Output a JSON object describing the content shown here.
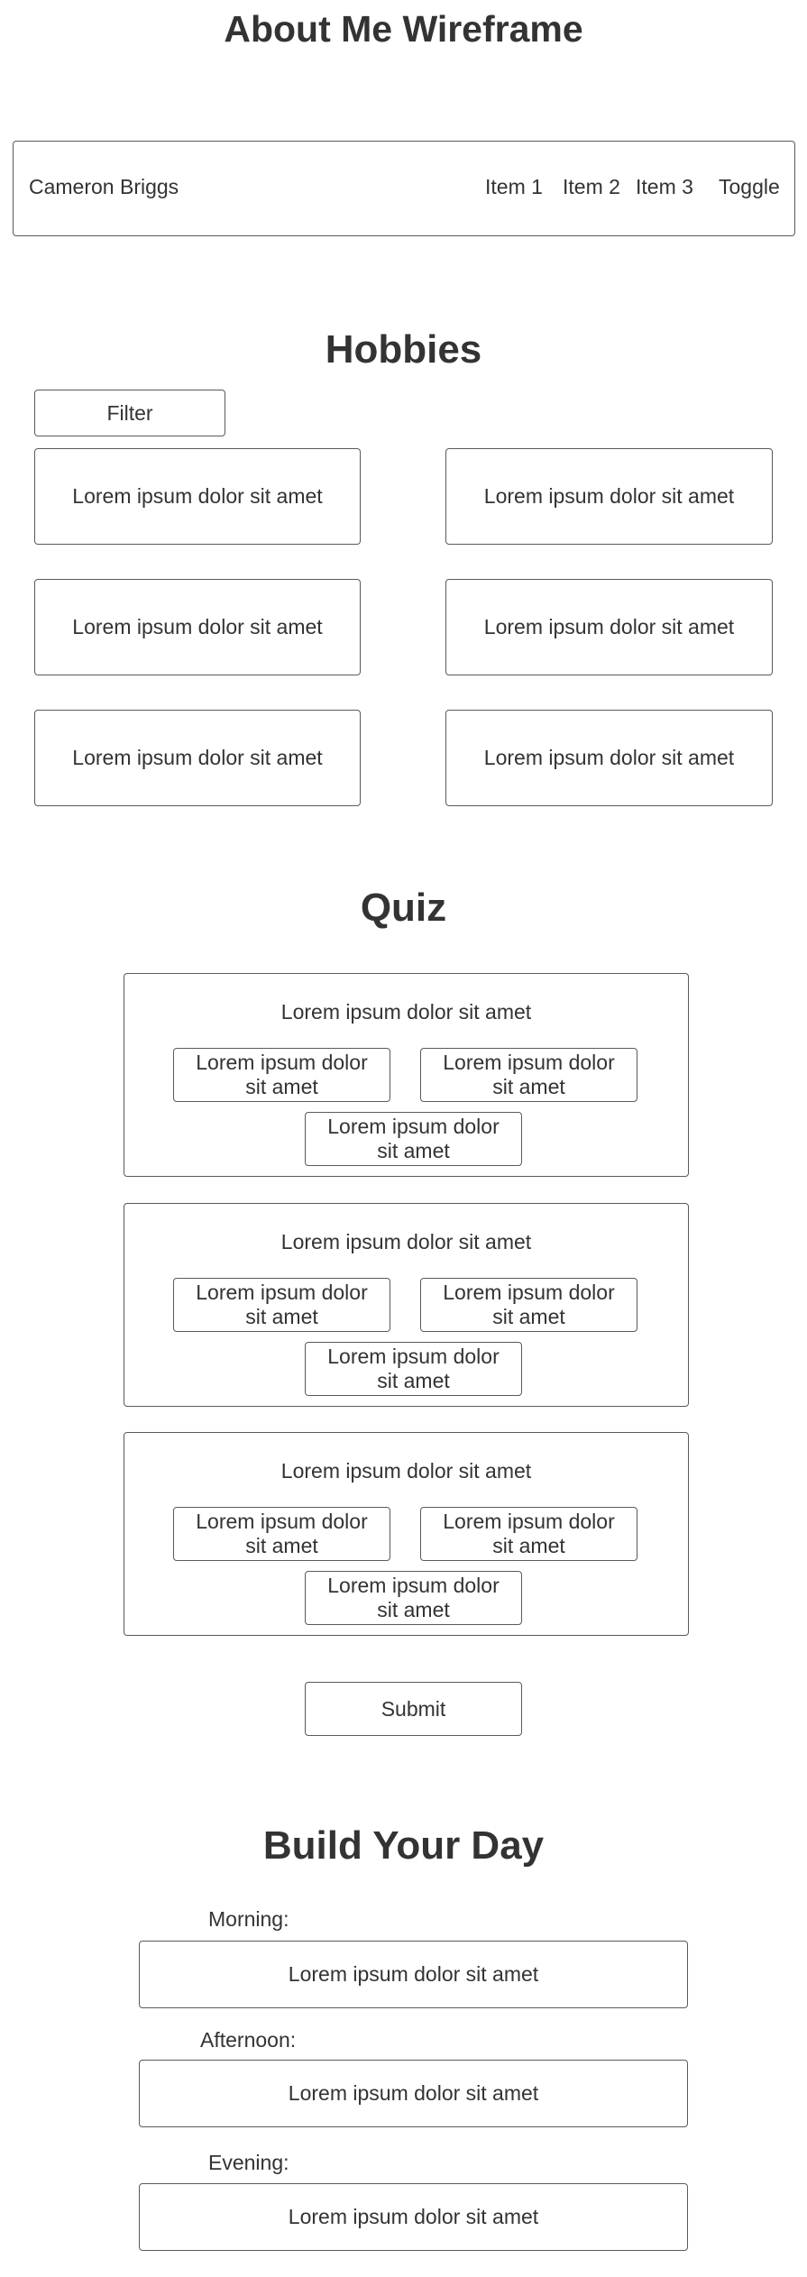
{
  "page": {
    "title": "About Me Wireframe"
  },
  "navbar": {
    "brand": "Cameron Briggs",
    "items": [
      "Item 1",
      "Item 2",
      "Item 3"
    ],
    "toggle": "Toggle"
  },
  "hobbies": {
    "title": "Hobbies",
    "filter_label": "Filter",
    "cards": [
      "Lorem ipsum dolor sit amet",
      "Lorem ipsum dolor sit amet",
      "Lorem ipsum dolor sit amet",
      "Lorem ipsum dolor sit amet",
      "Lorem ipsum dolor sit amet",
      "Lorem ipsum dolor sit amet"
    ]
  },
  "quiz": {
    "title": "Quiz",
    "questions": [
      {
        "text": "Lorem ipsum dolor sit amet",
        "options": [
          "Lorem ipsum dolor sit amet",
          "Lorem ipsum dolor sit amet",
          "Lorem ipsum dolor sit amet"
        ]
      },
      {
        "text": "Lorem ipsum dolor sit amet",
        "options": [
          "Lorem ipsum dolor sit amet",
          "Lorem ipsum dolor sit amet",
          "Lorem ipsum dolor sit amet"
        ]
      },
      {
        "text": "Lorem ipsum dolor sit amet",
        "options": [
          "Lorem ipsum dolor sit amet",
          "Lorem ipsum dolor sit amet",
          "Lorem ipsum dolor sit amet"
        ]
      }
    ],
    "submit_label": "Submit"
  },
  "build_day": {
    "title": "Build Your Day",
    "slots": [
      {
        "label": "Morning:",
        "value": "Lorem ipsum dolor sit amet"
      },
      {
        "label": "Afternoon:",
        "value": "Lorem ipsum dolor sit amet"
      },
      {
        "label": "Evening:",
        "value": "Lorem ipsum dolor sit amet"
      }
    ]
  },
  "colors": {
    "text": "#333333",
    "border": "#5a5a5a",
    "background": "#ffffff"
  }
}
